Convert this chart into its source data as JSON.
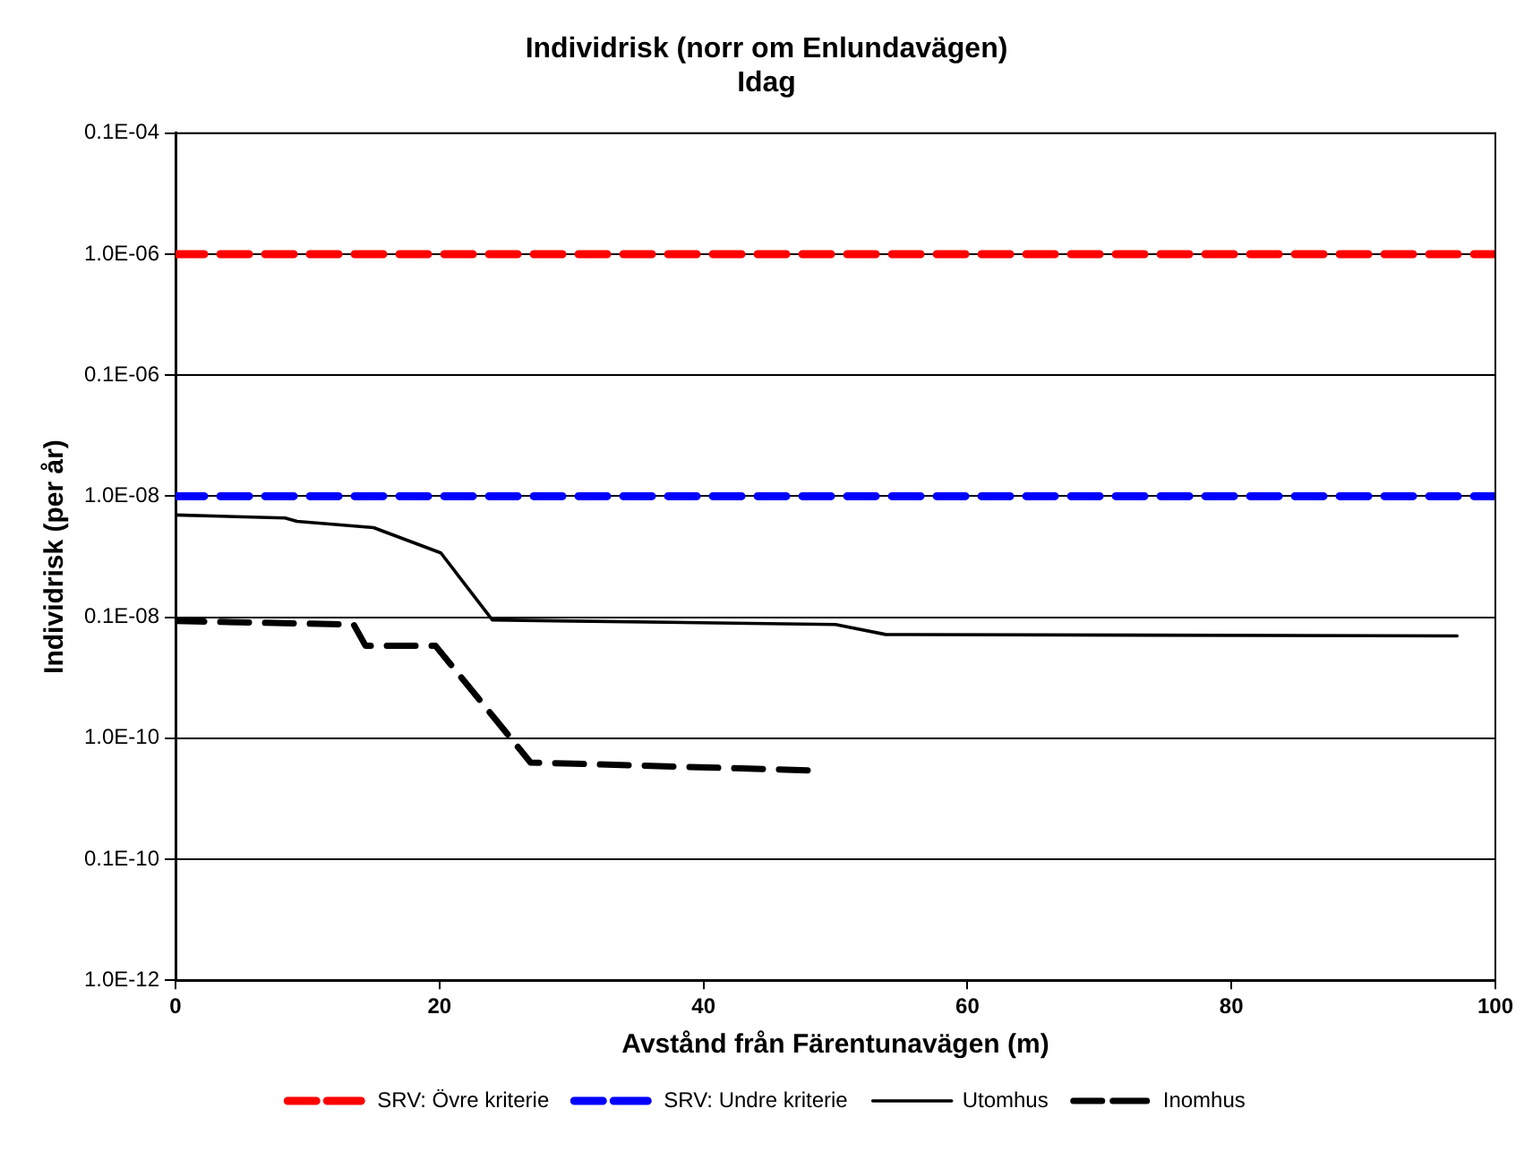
{
  "chart_data": {
    "type": "line",
    "title": "Individrisk (norr om Enlundavägen)",
    "subtitle": "Idag",
    "xlabel": "Avstånd från Färentunavägen (m)",
    "ylabel": "Individrisk (per år)",
    "log": "y",
    "xlim": [
      0,
      100
    ],
    "xticks": [
      0,
      20,
      40,
      60,
      80,
      100
    ],
    "ylim": [
      1e-12,
      1e-05
    ],
    "yticks": [
      {
        "value": 1e-05,
        "label": "0.1E-04"
      },
      {
        "value": 1e-06,
        "label": "1.0E-06"
      },
      {
        "value": 1e-07,
        "label": "0.1E-06"
      },
      {
        "value": 1e-08,
        "label": "1.0E-08"
      },
      {
        "value": 1e-09,
        "label": "0.1E-08"
      },
      {
        "value": 1e-10,
        "label": "1.0E-10"
      },
      {
        "value": 1e-11,
        "label": "0.1E-10"
      },
      {
        "value": 1e-12,
        "label": "1.0E-12"
      }
    ],
    "grid": "y",
    "legend": "bottom",
    "marker": "none",
    "series": [
      {
        "name": "SRV: Övre kriterie",
        "color": "#ff0000",
        "line_style": "dashed",
        "x": [
          0,
          100
        ],
        "values": [
          1e-06,
          1e-06
        ]
      },
      {
        "name": "SRV: Undre kriterie",
        "color": "#0000ff",
        "line_style": "dashed",
        "x": [
          0,
          100
        ],
        "values": [
          1e-08,
          1e-08
        ]
      },
      {
        "name": "Utomhus",
        "color": "#000000",
        "line_style": "solid",
        "x": [
          0,
          8.3,
          9.2,
          15,
          20.1,
          24,
          30,
          50,
          53.8,
          97.1
        ],
        "values": [
          7e-09,
          6.6e-09,
          6.2e-09,
          5.5e-09,
          3.4e-09,
          9.5e-10,
          9.3e-10,
          8.7e-10,
          7.2e-10,
          7e-10
        ]
      },
      {
        "name": "Inomhus",
        "color": "#000000",
        "line_style": "dashed",
        "x": [
          0,
          13.5,
          14.4,
          19.7,
          26.9,
          48.7
        ],
        "values": [
          9.3e-10,
          8.7e-10,
          5.8e-10,
          5.8e-10,
          6.3e-11,
          5.4e-11
        ]
      }
    ]
  }
}
